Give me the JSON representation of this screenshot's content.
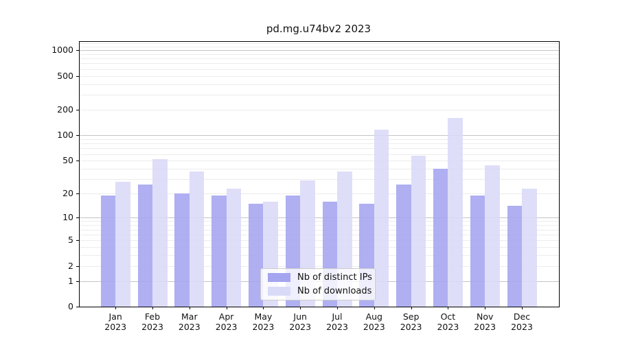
{
  "figure": {
    "background": "#ffffff"
  },
  "chart_data": {
    "type": "bar",
    "title": "pd.mg.u74bv2 2023",
    "categories": [
      "Jan",
      "Feb",
      "Mar",
      "Apr",
      "May",
      "Jun",
      "Jul",
      "Aug",
      "Sep",
      "Oct",
      "Nov",
      "Dec"
    ],
    "category_year": "2023",
    "series": [
      {
        "name": "Nb of distinct IPs",
        "color": "#a4a4f0",
        "values": [
          19,
          26,
          20,
          19,
          15,
          19,
          16,
          15,
          26,
          40,
          19,
          14
        ]
      },
      {
        "name": "Nb of downloads",
        "color": "#d9d9f8",
        "values": [
          28,
          52,
          37,
          23,
          16,
          29,
          37,
          117,
          57,
          160,
          44,
          23
        ]
      }
    ],
    "xlabel": "",
    "ylabel": "",
    "yscale": "log1p",
    "yticks": [
      1000,
      500,
      200,
      100,
      50,
      20,
      10,
      5,
      2,
      1,
      0
    ],
    "ylim": [
      0,
      1250
    ],
    "grid": true,
    "legend_position": "lower-center"
  }
}
